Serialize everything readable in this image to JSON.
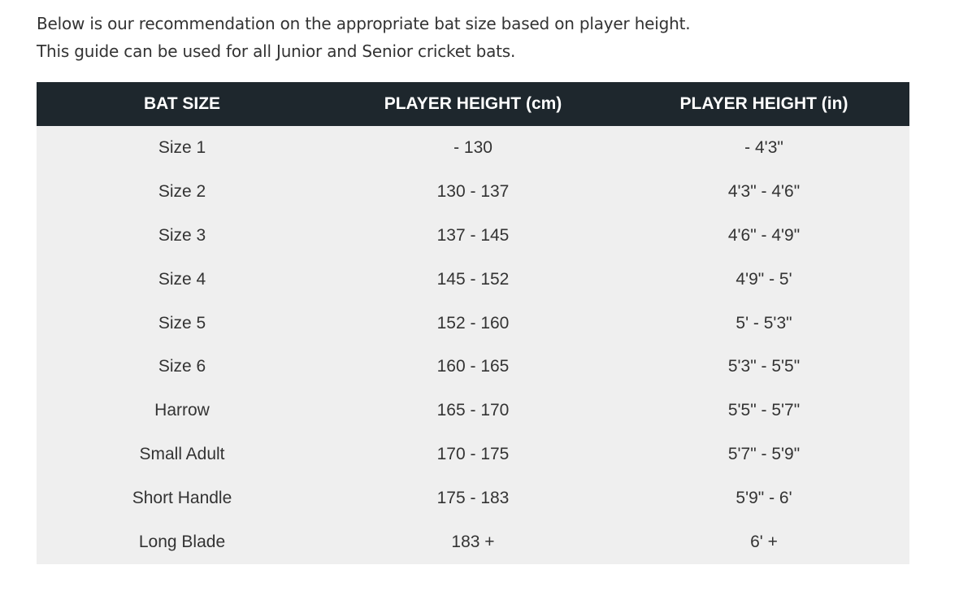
{
  "intro": {
    "line1": "Below is our recommendation on the appropriate bat size based on player height.",
    "line2": "This guide can be used for all Junior and Senior cricket bats."
  },
  "table": {
    "headers": [
      "BAT SIZE",
      "PLAYER HEIGHT (cm)",
      "PLAYER HEIGHT (in)"
    ],
    "rows": [
      [
        "Size 1",
        "- 130",
        "- 4'3\""
      ],
      [
        "Size 2",
        "130 - 137",
        "4'3\" - 4'6\""
      ],
      [
        "Size 3",
        "137 - 145",
        "4'6\" - 4'9\""
      ],
      [
        "Size 4",
        "145 - 152",
        "4'9\" - 5'"
      ],
      [
        "Size 5",
        "152 - 160",
        "5' - 5'3\""
      ],
      [
        "Size 6",
        "160 - 165",
        "5'3\" - 5'5\""
      ],
      [
        "Harrow",
        "165 - 170",
        "5'5\" - 5'7\""
      ],
      [
        "Small Adult",
        "170 - 175",
        "5'7\" - 5'9\""
      ],
      [
        "Short Handle",
        "175 - 183",
        "5'9\" - 6'"
      ],
      [
        "Long Blade",
        "183 +",
        "6' +"
      ]
    ]
  },
  "colors": {
    "header_bg": "#1e272d",
    "row_bg": "#efefef",
    "text": "#333333"
  }
}
